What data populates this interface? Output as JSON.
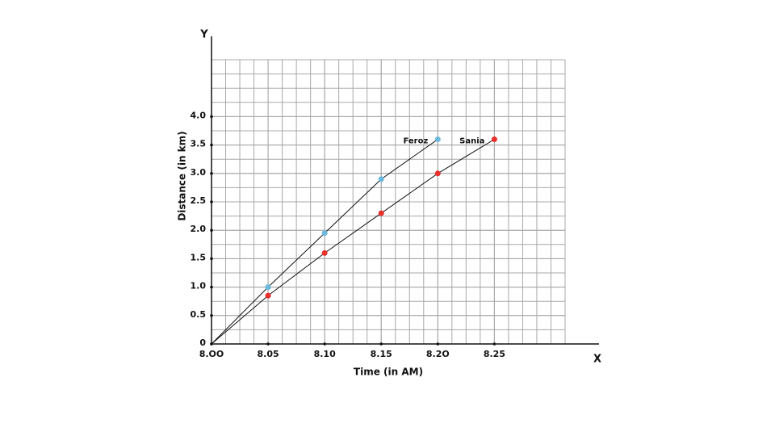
{
  "chart_data": {
    "type": "line",
    "x_label": "Time (in AM)",
    "y_label": "Distance (in km)",
    "x_axis_letter": "X",
    "y_axis_letter": "Y",
    "series": [
      {
        "name": "Feroz",
        "color": "#6bb8dc",
        "x": [
          8.0,
          8.05,
          8.1,
          8.15,
          8.2
        ],
        "values": [
          0,
          1.0,
          1.95,
          2.9,
          3.6
        ]
      },
      {
        "name": "Sania",
        "color": "#e8302c",
        "x": [
          8.0,
          8.05,
          8.1,
          8.15,
          8.2,
          8.25
        ],
        "values": [
          0,
          0.85,
          1.6,
          2.3,
          3.0,
          3.6
        ]
      }
    ],
    "xlim": [
      8.0,
      8.3125
    ],
    "ylim": [
      0,
      5.0
    ],
    "xticks": [
      {
        "value": 8.0,
        "label": "8.OO"
      },
      8.05,
      {
        "value": 8.1,
        "label": "8.10"
      },
      8.15,
      {
        "value": 8.2,
        "label": "8.2O"
      },
      8.25
    ],
    "yticks": [
      0,
      0.5,
      {
        "value": 1.0,
        "label": "1.0"
      },
      1.5,
      {
        "value": 2.0,
        "label": "2.0"
      },
      2.5,
      {
        "value": 3.0,
        "label": "3.0"
      },
      3.5,
      {
        "value": 4.0,
        "label": "4.0"
      }
    ],
    "grid": true
  }
}
